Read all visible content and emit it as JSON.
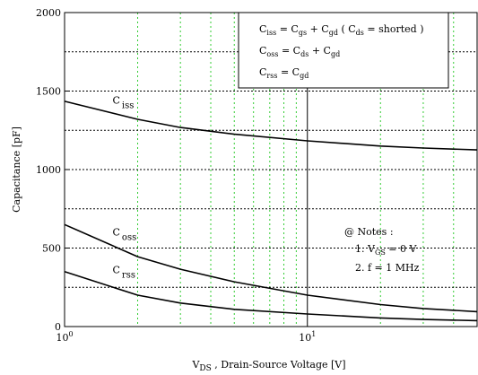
{
  "chart_data": {
    "type": "line",
    "xscale": "log",
    "xlim": [
      1,
      50
    ],
    "ylim": [
      0,
      2000
    ],
    "xlabel": {
      "prefix": "V",
      "sub": "DS",
      "rest": " , Drain-Source Voltage [V]"
    },
    "ylabel": "Capacitance  [pF]",
    "yticks": [
      0,
      500,
      1000,
      1500,
      2000
    ],
    "ytick_labels": [
      "0",
      "500",
      "1000",
      "1500",
      "2000"
    ],
    "xticks_major": [
      {
        "value": 1,
        "base": "10",
        "exp": "0"
      },
      {
        "value": 10,
        "base": "10",
        "exp": "1"
      }
    ],
    "grid": "on (dotted; green vertical minor lines)",
    "series": [
      {
        "name": "C",
        "sub": "iss",
        "color": "#000000",
        "x": [
          1,
          2,
          3,
          5,
          10,
          20,
          30,
          50
        ],
        "y": [
          1435,
          1320,
          1268,
          1225,
          1183,
          1150,
          1137,
          1125
        ]
      },
      {
        "name": "C",
        "sub": "oss",
        "color": "#000000",
        "x": [
          1,
          2,
          3,
          5,
          10,
          20,
          30,
          50
        ],
        "y": [
          650,
          445,
          365,
          285,
          200,
          140,
          115,
          95
        ]
      },
      {
        "name": "C",
        "sub": "rss",
        "color": "#000000",
        "x": [
          1,
          2,
          3,
          5,
          10,
          20,
          30,
          50
        ],
        "y": [
          350,
          200,
          150,
          110,
          80,
          55,
          45,
          38
        ]
      }
    ],
    "legend_box": {
      "placement": "top-right",
      "lines": [
        [
          [
            "C",
            ""
          ],
          [
            "iss",
            "s"
          ],
          [
            " = C",
            ""
          ],
          [
            "gs",
            "s"
          ],
          [
            " + C",
            ""
          ],
          [
            "gd",
            "s"
          ],
          [
            "  ( C",
            ""
          ],
          [
            "ds",
            "s"
          ],
          [
            " = shorted )",
            ""
          ]
        ],
        [
          [
            "C",
            ""
          ],
          [
            "oss",
            "s"
          ],
          [
            " = C",
            ""
          ],
          [
            "ds",
            "s"
          ],
          [
            " + C",
            ""
          ],
          [
            "gd",
            "s"
          ]
        ],
        [
          [
            "C",
            ""
          ],
          [
            "rss",
            "s"
          ],
          [
            " = C",
            ""
          ],
          [
            "gd",
            "s"
          ]
        ]
      ]
    },
    "notes": {
      "title": "@ Notes :",
      "line1": {
        "prefix": "1. V",
        "sub": "GS",
        "rest": " = 0 V"
      },
      "line2": "2. f = 1 MHz"
    },
    "colors": {
      "grid_minor": "#33cc33",
      "grid_major": "#000000",
      "curve": "#000000"
    }
  }
}
